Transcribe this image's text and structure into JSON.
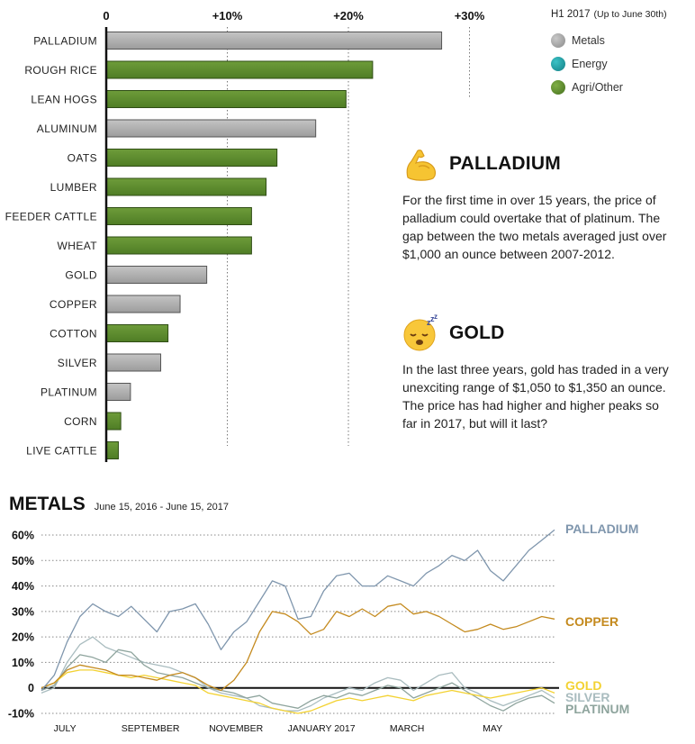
{
  "legend": {
    "title": "H1 2017",
    "subtitle": "(Up to June 30th)",
    "items": [
      {
        "label": "Metals",
        "color": "#a6a6a6"
      },
      {
        "label": "Energy",
        "color": "#1b9aa0"
      },
      {
        "label": "Agri/Other",
        "color": "#5a8a2c"
      }
    ]
  },
  "callouts": [
    {
      "title": "PALLADIUM",
      "icon": "flexed-biceps-icon",
      "body": "For the first time in over 15 years, the price of palladium could overtake that of platinum. The gap between the two metals averaged just over $1,000 an ounce between 2007-2012."
    },
    {
      "title": "GOLD",
      "icon": "sleeping-face-icon",
      "body": "In the last three years, gold has traded in a very unexciting range of $1,050 to $1,350 an ounce. The price has had higher and higher peaks so far in 2017, but will it last?"
    }
  ],
  "metals_header": {
    "title": "METALS",
    "range": "June 15, 2016 - June 15, 2017"
  },
  "chart_data": [
    {
      "type": "bar",
      "orientation": "horizontal",
      "x_ticks": [
        "0",
        "+10%",
        "+20%",
        "+30%"
      ],
      "xlim": [
        0,
        30
      ],
      "categories": [
        "PALLADIUM",
        "ROUGH RICE",
        "LEAN HOGS",
        "ALUMINUM",
        "OATS",
        "LUMBER",
        "FEEDER CATTLE",
        "WHEAT",
        "GOLD",
        "COPPER",
        "COTTON",
        "SILVER",
        "PLATINUM",
        "CORN",
        "LIVE CATTLE"
      ],
      "values": [
        27.7,
        22.0,
        19.8,
        17.3,
        14.1,
        13.2,
        12.0,
        12.0,
        8.3,
        6.1,
        5.1,
        4.5,
        2.0,
        1.2,
        1.0
      ],
      "groups": [
        "Metals",
        "Agri/Other",
        "Agri/Other",
        "Metals",
        "Agri/Other",
        "Agri/Other",
        "Agri/Other",
        "Agri/Other",
        "Metals",
        "Metals",
        "Agri/Other",
        "Metals",
        "Metals",
        "Agri/Other",
        "Agri/Other"
      ],
      "colors": {
        "Metals": "#a6a6a6",
        "Agri/Other": "#5a8a2c"
      }
    },
    {
      "type": "line",
      "y_ticks": [
        "60%",
        "50%",
        "40%",
        "30%",
        "20%",
        "10%",
        "0",
        "-10%"
      ],
      "y_tick_values": [
        60,
        50,
        40,
        30,
        20,
        10,
        0,
        -10
      ],
      "ylim": [
        -12,
        64
      ],
      "x_labels": [
        "JULY",
        "SEPTEMBER",
        "NOVEMBER",
        "JANUARY 2017",
        "MARCH",
        "MAY"
      ],
      "x_label_months": [
        0.55,
        2.55,
        4.55,
        6.55,
        8.55,
        10.55
      ],
      "x_range_months": [
        0,
        12
      ],
      "series": [
        {
          "name": "PALLADIUM",
          "color": "#7f96ad",
          "x": [
            0,
            0.3,
            0.6,
            0.9,
            1.2,
            1.5,
            1.8,
            2.1,
            2.4,
            2.7,
            3.0,
            3.3,
            3.6,
            3.9,
            4.2,
            4.5,
            4.8,
            5.1,
            5.4,
            5.7,
            6.0,
            6.3,
            6.6,
            6.9,
            7.2,
            7.5,
            7.8,
            8.1,
            8.4,
            8.7,
            9.0,
            9.3,
            9.6,
            9.9,
            10.2,
            10.5,
            10.8,
            11.1,
            11.4,
            11.7,
            12.0
          ],
          "y": [
            -1,
            5,
            18,
            28,
            33,
            30,
            28,
            32,
            27,
            22,
            30,
            31,
            33,
            25,
            15,
            22,
            26,
            34,
            42,
            40,
            27,
            28,
            38,
            44,
            45,
            40,
            40,
            44,
            42,
            40,
            45,
            48,
            52,
            50,
            54,
            46,
            42,
            48,
            54,
            58,
            62
          ]
        },
        {
          "name": "COPPER",
          "color": "#c48a1e",
          "x": [
            0,
            0.3,
            0.6,
            0.9,
            1.2,
            1.5,
            1.8,
            2.1,
            2.4,
            2.7,
            3.0,
            3.3,
            3.6,
            3.9,
            4.2,
            4.5,
            4.8,
            5.1,
            5.4,
            5.7,
            6.0,
            6.3,
            6.6,
            6.9,
            7.2,
            7.5,
            7.8,
            8.1,
            8.4,
            8.7,
            9.0,
            9.3,
            9.6,
            9.9,
            10.2,
            10.5,
            10.8,
            11.1,
            11.4,
            11.7,
            12.0
          ],
          "y": [
            0,
            2,
            7,
            9,
            8,
            7,
            5,
            5,
            4,
            3,
            5,
            6,
            4,
            1,
            -1,
            3,
            10,
            22,
            30,
            29,
            26,
            21,
            23,
            30,
            28,
            31,
            28,
            32,
            33,
            29,
            30,
            28,
            25,
            22,
            23,
            25,
            23,
            24,
            26,
            28,
            27
          ]
        },
        {
          "name": "GOLD",
          "color": "#f3d233",
          "x": [
            0,
            0.3,
            0.6,
            0.9,
            1.2,
            1.5,
            1.8,
            2.1,
            2.4,
            2.7,
            3.0,
            3.3,
            3.6,
            3.9,
            4.2,
            4.5,
            4.8,
            5.1,
            5.4,
            5.7,
            6.0,
            6.3,
            6.6,
            6.9,
            7.2,
            7.5,
            7.8,
            8.1,
            8.4,
            8.7,
            9.0,
            9.3,
            9.6,
            9.9,
            10.2,
            10.5,
            10.8,
            11.1,
            11.4,
            11.7,
            12.0
          ],
          "y": [
            0,
            2,
            6,
            7,
            7,
            6,
            5,
            4,
            5,
            4,
            3,
            2,
            1,
            -2,
            -3,
            -4,
            -5,
            -6,
            -8,
            -9,
            -10,
            -9,
            -7,
            -5,
            -4,
            -5,
            -4,
            -3,
            -4,
            -5,
            -3,
            -2,
            -1,
            -2,
            -3,
            -4,
            -3,
            -2,
            -1,
            0,
            -2
          ]
        },
        {
          "name": "SILVER",
          "color": "#a9bcbf",
          "x": [
            0,
            0.3,
            0.6,
            0.9,
            1.2,
            1.5,
            1.8,
            2.1,
            2.4,
            2.7,
            3.0,
            3.3,
            3.6,
            3.9,
            4.2,
            4.5,
            4.8,
            5.1,
            5.4,
            5.7,
            6.0,
            6.3,
            6.6,
            6.9,
            7.2,
            7.5,
            7.8,
            8.1,
            8.4,
            8.7,
            9.0,
            9.3,
            9.6,
            9.9,
            10.2,
            10.5,
            10.8,
            11.1,
            11.4,
            11.7,
            12.0
          ],
          "y": [
            -2,
            0,
            10,
            17,
            20,
            16,
            14,
            12,
            10,
            9,
            8,
            6,
            4,
            0,
            -2,
            -3,
            -4,
            -7,
            -8,
            -9,
            -9,
            -7,
            -4,
            -2,
            0,
            -1,
            2,
            4,
            3,
            -1,
            2,
            5,
            6,
            0,
            -2,
            -5,
            -7,
            -5,
            -3,
            -1,
            -4
          ]
        },
        {
          "name": "PLATINUM",
          "color": "#8ea49d",
          "x": [
            0,
            0.3,
            0.6,
            0.9,
            1.2,
            1.5,
            1.8,
            2.1,
            2.4,
            2.7,
            3.0,
            3.3,
            3.6,
            3.9,
            4.2,
            4.5,
            4.8,
            5.1,
            5.4,
            5.7,
            6.0,
            6.3,
            6.6,
            6.9,
            7.2,
            7.5,
            7.8,
            8.1,
            8.4,
            8.7,
            9.0,
            9.3,
            9.6,
            9.9,
            10.2,
            10.5,
            10.8,
            11.1,
            11.4,
            11.7,
            12.0
          ],
          "y": [
            -1,
            1,
            8,
            13,
            12,
            10,
            15,
            14,
            9,
            6,
            5,
            4,
            2,
            0,
            -1,
            -2,
            -4,
            -3,
            -6,
            -7,
            -8,
            -5,
            -3,
            -4,
            -2,
            -3,
            -1,
            1,
            0,
            -4,
            -2,
            0,
            2,
            -1,
            -4,
            -7,
            -9,
            -6,
            -4,
            -3,
            -6
          ]
        }
      ],
      "line_labels": [
        "PALLADIUM",
        "COPPER",
        "GOLD",
        "SILVER",
        "PLATINUM"
      ]
    }
  ]
}
